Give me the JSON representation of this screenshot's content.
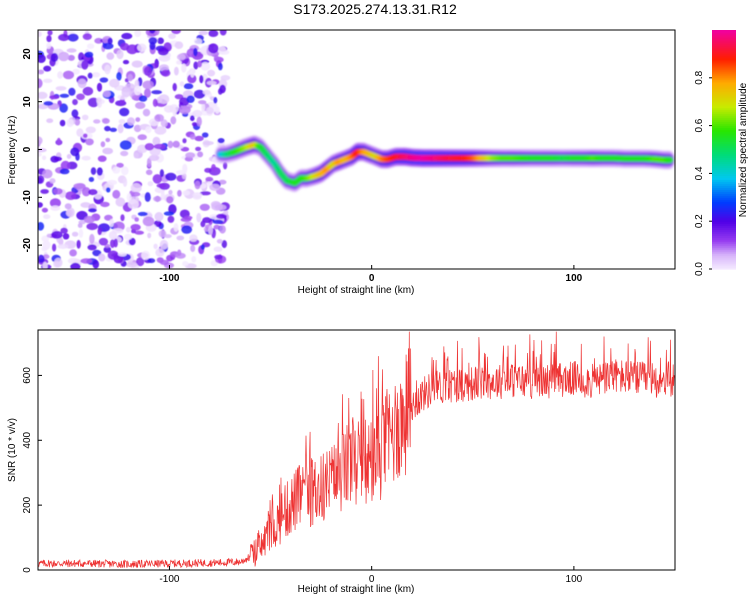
{
  "title": "S173.2025.274.13.31.R12",
  "chart_data": [
    {
      "type": "heatmap",
      "name": "spectrogram",
      "xlabel": "Height of straight line (km)",
      "ylabel": "Frequency (Hz)",
      "xlim": [
        -165,
        150
      ],
      "ylim": [
        -25,
        25
      ],
      "xticks": [
        -100,
        0,
        100
      ],
      "xtick_labels": [
        "-100",
        "0",
        "100"
      ],
      "yticks": [
        20,
        10,
        0,
        -10,
        -20
      ],
      "ytick_labels": [
        "20",
        "10",
        "0",
        "-10",
        "-20"
      ],
      "noise_region_x": [
        -165,
        -72
      ],
      "ridge": [
        {
          "x": -75,
          "y": -1.0,
          "a": 0.35
        },
        {
          "x": -72,
          "y": -1.0,
          "a": 0.45
        },
        {
          "x": -68,
          "y": -0.5,
          "a": 0.55
        },
        {
          "x": -65,
          "y": 0.0,
          "a": 0.6
        },
        {
          "x": -62,
          "y": 0.5,
          "a": 0.65
        },
        {
          "x": -58,
          "y": 1.0,
          "a": 0.75
        },
        {
          "x": -55,
          "y": 0.5,
          "a": 0.55
        },
        {
          "x": -52,
          "y": -1.0,
          "a": 0.5
        },
        {
          "x": -48,
          "y": -3.0,
          "a": 0.45
        },
        {
          "x": -45,
          "y": -5.0,
          "a": 0.5
        },
        {
          "x": -42,
          "y": -6.5,
          "a": 0.5
        },
        {
          "x": -38,
          "y": -7.0,
          "a": 0.55
        },
        {
          "x": -35,
          "y": -6.0,
          "a": 0.55
        },
        {
          "x": -32,
          "y": -6.0,
          "a": 0.6
        },
        {
          "x": -28,
          "y": -5.5,
          "a": 0.7
        },
        {
          "x": -25,
          "y": -5.0,
          "a": 0.75
        },
        {
          "x": -22,
          "y": -4.0,
          "a": 0.8
        },
        {
          "x": -19,
          "y": -3.0,
          "a": 0.7
        },
        {
          "x": -16,
          "y": -2.5,
          "a": 0.8
        },
        {
          "x": -13,
          "y": -2.0,
          "a": 0.75
        },
        {
          "x": -10,
          "y": -1.5,
          "a": 0.8
        },
        {
          "x": -7,
          "y": -0.5,
          "a": 0.9
        },
        {
          "x": -4,
          "y": -0.5,
          "a": 0.8
        },
        {
          "x": -1,
          "y": -1.0,
          "a": 0.75
        },
        {
          "x": 2,
          "y": -1.5,
          "a": 0.7
        },
        {
          "x": 5,
          "y": -2.0,
          "a": 0.8
        },
        {
          "x": 8,
          "y": -2.0,
          "a": 0.85
        },
        {
          "x": 12,
          "y": -1.5,
          "a": 0.9
        },
        {
          "x": 16,
          "y": -1.5,
          "a": 0.95
        },
        {
          "x": 20,
          "y": -1.7,
          "a": 0.98
        },
        {
          "x": 25,
          "y": -1.8,
          "a": 1.0
        },
        {
          "x": 30,
          "y": -1.8,
          "a": 0.98
        },
        {
          "x": 35,
          "y": -1.8,
          "a": 0.95
        },
        {
          "x": 40,
          "y": -1.8,
          "a": 0.92
        },
        {
          "x": 45,
          "y": -1.8,
          "a": 0.9
        },
        {
          "x": 50,
          "y": -1.8,
          "a": 0.85
        },
        {
          "x": 55,
          "y": -1.8,
          "a": 0.75
        },
        {
          "x": 60,
          "y": -1.8,
          "a": 0.65
        },
        {
          "x": 65,
          "y": -1.8,
          "a": 0.6
        },
        {
          "x": 70,
          "y": -1.8,
          "a": 0.6
        },
        {
          "x": 75,
          "y": -1.8,
          "a": 0.58
        },
        {
          "x": 80,
          "y": -1.8,
          "a": 0.55
        },
        {
          "x": 85,
          "y": -1.8,
          "a": 0.55
        },
        {
          "x": 90,
          "y": -1.8,
          "a": 0.55
        },
        {
          "x": 95,
          "y": -1.8,
          "a": 0.52
        },
        {
          "x": 100,
          "y": -1.8,
          "a": 0.55
        },
        {
          "x": 105,
          "y": -1.8,
          "a": 0.55
        },
        {
          "x": 110,
          "y": -1.8,
          "a": 0.6
        },
        {
          "x": 115,
          "y": -1.8,
          "a": 0.55
        },
        {
          "x": 120,
          "y": -1.8,
          "a": 0.55
        },
        {
          "x": 125,
          "y": -1.9,
          "a": 0.55
        },
        {
          "x": 130,
          "y": -1.9,
          "a": 0.55
        },
        {
          "x": 135,
          "y": -1.9,
          "a": 0.55
        },
        {
          "x": 140,
          "y": -2.0,
          "a": 0.6
        },
        {
          "x": 145,
          "y": -2.2,
          "a": 0.6
        },
        {
          "x": 148,
          "y": -2.2,
          "a": 0.55
        }
      ]
    },
    {
      "type": "colorbar",
      "name": "amplitude-colorbar",
      "label": "Normalized spectral amplitude",
      "range": [
        0.0,
        1.0
      ],
      "ticks": [
        0.0,
        0.2,
        0.4,
        0.6,
        0.8
      ],
      "tick_labels": [
        "0.0",
        "0.2",
        "0.4",
        "0.6",
        "0.8"
      ]
    },
    {
      "type": "line",
      "name": "snr",
      "xlabel": "Height of straight line (km)",
      "ylabel": "SNR (10 * v/v)",
      "xlim": [
        -165,
        150
      ],
      "ylim": [
        0,
        740
      ],
      "xticks": [
        -100,
        0,
        100
      ],
      "xtick_labels": [
        "-100",
        "0",
        "100"
      ],
      "yticks": [
        0,
        200,
        400,
        600
      ],
      "ytick_labels": [
        "0",
        "200",
        "400",
        "600"
      ],
      "color": "#ee3333",
      "series": [
        {
          "name": "SNR",
          "x": [
            -165,
            -140,
            -120,
            -100,
            -80,
            -65,
            -60,
            -55,
            -50,
            -45,
            -40,
            -35,
            -30,
            -25,
            -20,
            -15,
            -10,
            -5,
            0,
            5,
            10,
            15,
            20,
            25,
            30,
            40,
            50,
            60,
            70,
            80,
            90,
            100,
            110,
            120,
            130,
            140,
            150
          ],
          "y": [
            20,
            20,
            18,
            20,
            22,
            25,
            40,
            70,
            120,
            160,
            200,
            230,
            240,
            250,
            270,
            300,
            330,
            300,
            330,
            370,
            420,
            460,
            510,
            540,
            560,
            570,
            575,
            580,
            585,
            580,
            585,
            590,
            580,
            600,
            590,
            585,
            590
          ]
        }
      ]
    }
  ]
}
